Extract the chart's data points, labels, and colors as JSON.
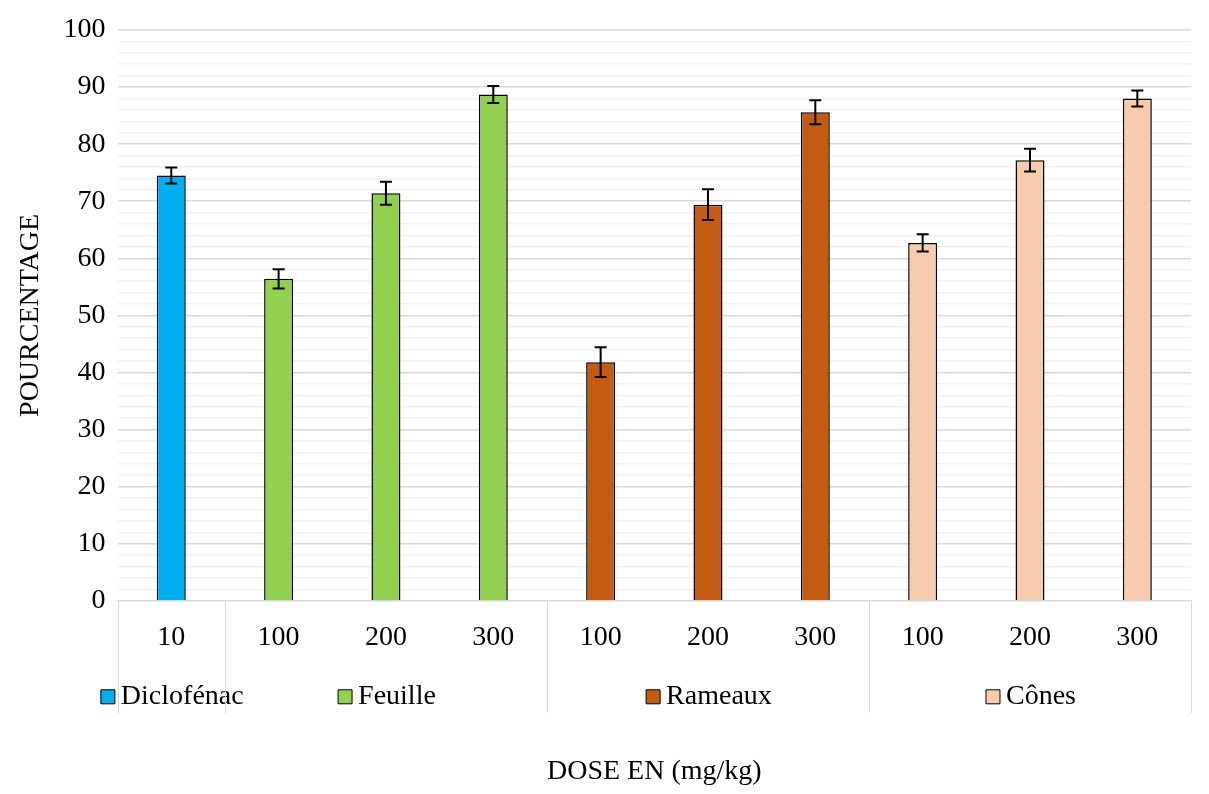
{
  "chart_data": {
    "type": "bar",
    "xlabel": "DOSE EN (mg/kg)",
    "ylabel": "POURCENTAGE",
    "categories": [
      "10",
      "100",
      "200",
      "300",
      "100",
      "200",
      "300",
      "100",
      "200",
      "300"
    ],
    "series": [
      {
        "name": "Diclofénac",
        "color": "#00b0f0",
        "values": [
          74.5,
          null,
          null,
          null,
          null,
          null,
          null,
          null,
          null,
          null
        ],
        "errors": [
          1.4,
          null,
          null,
          null,
          null,
          null,
          null,
          null,
          null,
          null
        ]
      },
      {
        "name": "Feuille",
        "color": "#92d050",
        "values": [
          null,
          56.4,
          71.4,
          88.7,
          null,
          null,
          null,
          null,
          null,
          null
        ],
        "errors": [
          null,
          1.7,
          2,
          1.5,
          null,
          null,
          null,
          null,
          null,
          null
        ]
      },
      {
        "name": "Rameaux",
        "color": "#c55a11",
        "values": [
          null,
          null,
          null,
          null,
          41.8,
          69.4,
          85.6,
          null,
          null,
          null
        ],
        "errors": [
          null,
          null,
          null,
          null,
          2.6,
          2.7,
          2.1,
          null,
          null,
          null
        ]
      },
      {
        "name": "Cônes",
        "color": "#f8cbad",
        "values": [
          null,
          null,
          null,
          null,
          null,
          null,
          null,
          62.7,
          77.2,
          88
        ],
        "errors": [
          null,
          null,
          null,
          null,
          null,
          null,
          null,
          1.5,
          2,
          1.4
        ]
      }
    ],
    "ylim": [
      0,
      100
    ],
    "yticks": [
      0,
      {
        "value": 2,
        "label": null
      },
      {
        "value": 4,
        "label": null
      },
      {
        "value": 6,
        "label": null
      },
      {
        "value": 8,
        "label": null
      },
      10,
      {
        "value": 12,
        "label": null
      },
      {
        "value": 14,
        "label": null
      },
      {
        "value": 16,
        "label": null
      },
      {
        "value": 18,
        "label": null
      },
      20,
      {
        "value": 22,
        "label": null
      },
      {
        "value": 24,
        "label": null
      },
      {
        "value": 26,
        "label": null
      },
      {
        "value": 28,
        "label": null
      },
      30,
      {
        "value": 32,
        "label": null
      },
      {
        "value": 34,
        "label": null
      },
      {
        "value": 36,
        "label": null
      },
      {
        "value": 38,
        "label": null
      },
      40,
      {
        "value": 42,
        "label": null
      },
      {
        "value": 44,
        "label": null
      },
      {
        "value": 46,
        "label": null
      },
      {
        "value": 48,
        "label": null
      },
      50,
      {
        "value": 52,
        "label": null
      },
      {
        "value": 54,
        "label": null
      },
      {
        "value": 56,
        "label": null
      },
      {
        "value": 58,
        "label": null
      },
      60,
      {
        "value": 62,
        "label": null
      },
      {
        "value": 64,
        "label": null
      },
      {
        "value": 66,
        "label": null
      },
      {
        "value": 68,
        "label": null
      },
      70,
      {
        "value": 72,
        "label": null
      },
      {
        "value": 74,
        "label": null
      },
      {
        "value": 76,
        "label": null
      },
      {
        "value": 78,
        "label": null
      },
      80,
      {
        "value": 82,
        "label": null
      },
      {
        "value": 84,
        "label": null
      },
      {
        "value": 86,
        "label": null
      },
      {
        "value": 88,
        "label": null
      },
      90,
      {
        "value": 92,
        "label": null
      },
      {
        "value": 94,
        "label": null
      },
      {
        "value": 96,
        "label": null
      },
      {
        "value": 98,
        "label": null
      },
      100
    ],
    "grid": "y",
    "legend": "bottom"
  }
}
